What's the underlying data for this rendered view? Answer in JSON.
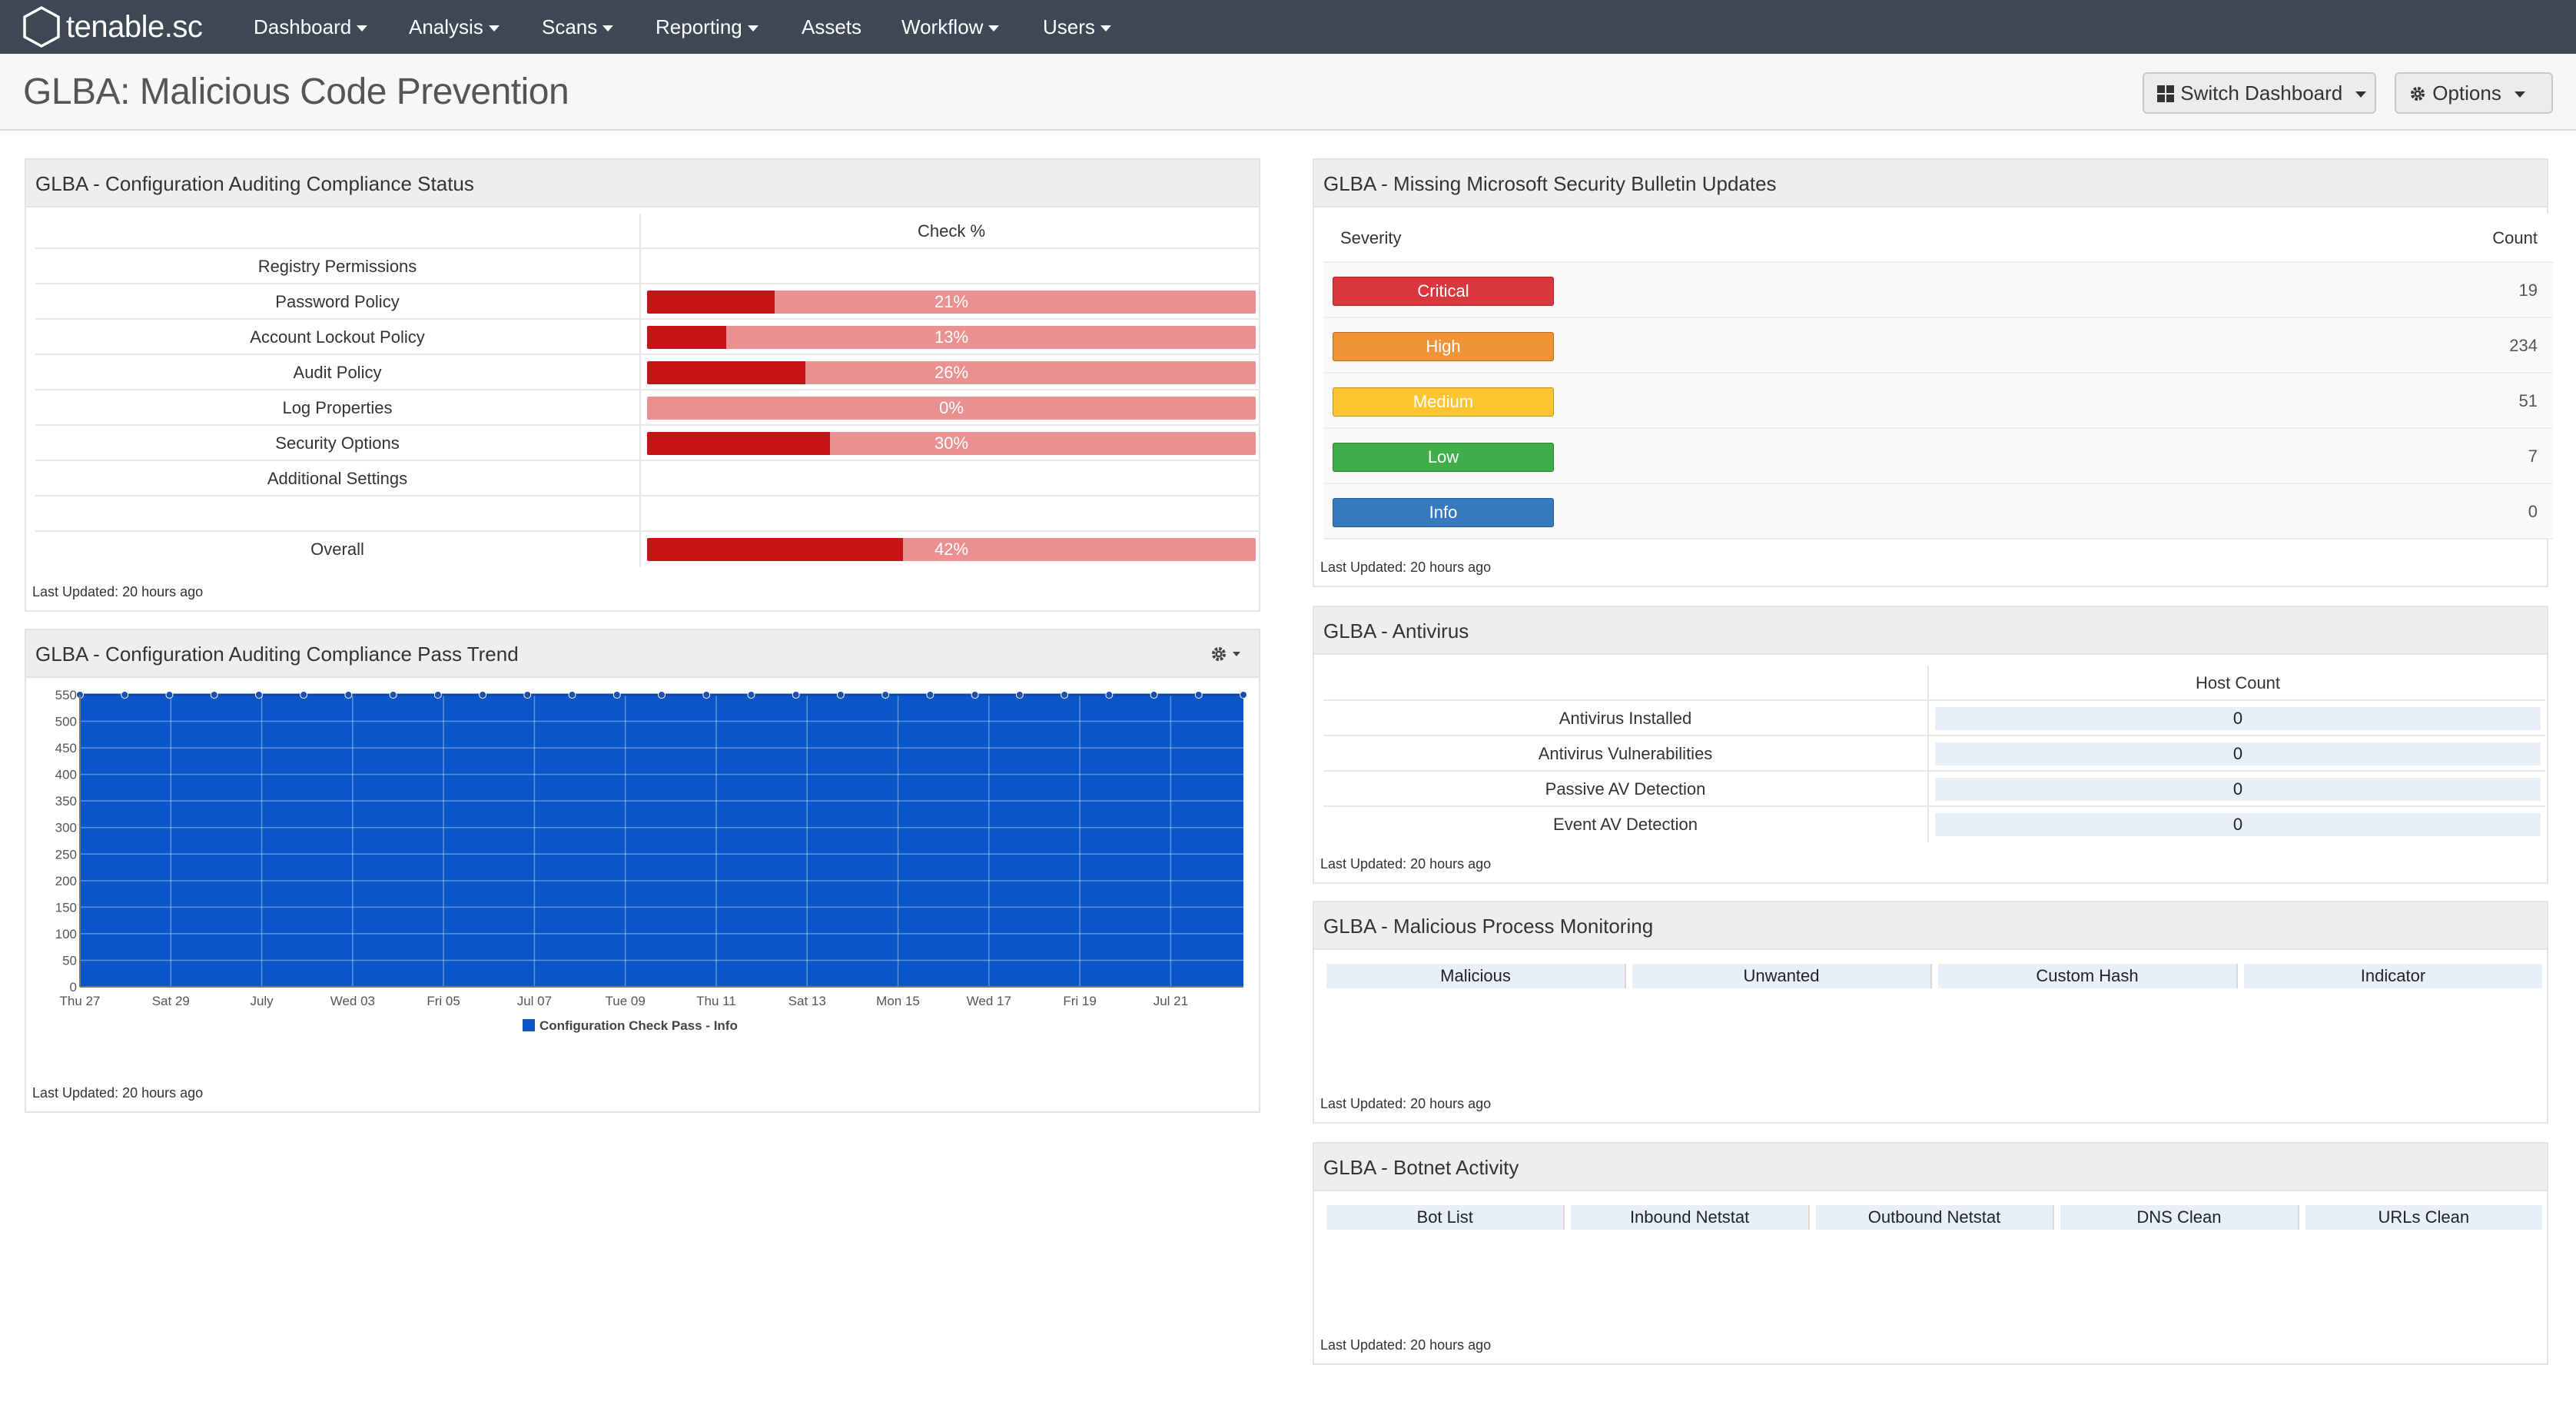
{
  "nav": {
    "logo": "tenable.sc",
    "items": [
      {
        "label": "Dashboard",
        "caret": true
      },
      {
        "label": "Analysis",
        "caret": true
      },
      {
        "label": "Scans",
        "caret": true
      },
      {
        "label": "Reporting",
        "caret": true
      },
      {
        "label": "Assets",
        "caret": false
      },
      {
        "label": "Workflow",
        "caret": true
      },
      {
        "label": "Users",
        "caret": true
      }
    ]
  },
  "header": {
    "title": "GLBA: Malicious Code Prevention",
    "switch_label": "Switch Dashboard",
    "options_label": "Options"
  },
  "compliance": {
    "title": "GLBA - Configuration Auditing Compliance Status",
    "column": "Check %",
    "rows": [
      {
        "label": "Registry Permissions",
        "pct": null
      },
      {
        "label": "Password Policy",
        "pct": 21
      },
      {
        "label": "Account Lockout Policy",
        "pct": 13
      },
      {
        "label": "Audit Policy",
        "pct": 26
      },
      {
        "label": "Log Properties",
        "pct": 0
      },
      {
        "label": "Security Options",
        "pct": 30
      },
      {
        "label": "Additional Settings",
        "pct": null
      },
      {
        "label": "",
        "pct": null
      },
      {
        "label": "Overall",
        "pct": 42
      }
    ],
    "updated": "Last Updated: 20 hours ago"
  },
  "trend": {
    "title": "GLBA - Configuration Auditing Compliance Pass Trend",
    "updated": "Last Updated: 20 hours ago"
  },
  "chart_data": {
    "type": "area",
    "title": "",
    "xlabel": "",
    "ylabel": "",
    "ylim": [
      0,
      550
    ],
    "y_ticks": [
      0,
      50,
      100,
      150,
      200,
      250,
      300,
      350,
      400,
      450,
      500,
      550
    ],
    "x_tick_labels": [
      "Thu 27",
      "Sat 29",
      "July",
      "Wed 03",
      "Fri 05",
      "Jul 07",
      "Tue 09",
      "Thu 11",
      "Sat 13",
      "Mon 15",
      "Wed 17",
      "Fri 19",
      "Jul 21"
    ],
    "grid": true,
    "legend_position": "bottom",
    "series": [
      {
        "name": "Configuration Check Pass - Info",
        "color": "#0a56c8",
        "values": [
          550,
          550,
          550,
          550,
          550,
          550,
          550,
          550,
          550,
          550,
          550,
          550,
          550,
          550,
          550,
          550,
          550,
          550,
          550,
          550,
          550,
          550,
          550,
          550,
          550,
          550,
          550
        ]
      }
    ]
  },
  "security": {
    "title": "GLBA - Missing Microsoft Security Bulletin Updates",
    "col_severity": "Severity",
    "col_count": "Count",
    "rows": [
      {
        "label": "Critical",
        "count": "19",
        "color": "#d9363e"
      },
      {
        "label": "High",
        "count": "234",
        "color": "#ee9336"
      },
      {
        "label": "Medium",
        "count": "51",
        "color": "#fdc431"
      },
      {
        "label": "Low",
        "count": "7",
        "color": "#3fae49"
      },
      {
        "label": "Info",
        "count": "0",
        "color": "#357abd"
      }
    ],
    "updated": "Last Updated: 20 hours ago"
  },
  "antivirus": {
    "title": "GLBA - Antivirus",
    "column": "Host Count",
    "rows": [
      {
        "label": "Antivirus Installed",
        "value": "0"
      },
      {
        "label": "Antivirus Vulnerabilities",
        "value": "0"
      },
      {
        "label": "Passive AV Detection",
        "value": "0"
      },
      {
        "label": "Event AV Detection",
        "value": "0"
      }
    ],
    "updated": "Last Updated: 20 hours ago"
  },
  "process": {
    "title": "GLBA - Malicious Process Monitoring",
    "columns": [
      "Malicious",
      "Unwanted",
      "Custom Hash",
      "Indicator"
    ],
    "updated": "Last Updated: 20 hours ago"
  },
  "botnet": {
    "title": "GLBA - Botnet Activity",
    "columns": [
      "Bot List",
      "Inbound Netstat",
      "Outbound Netstat",
      "DNS Clean",
      "URLs Clean"
    ],
    "updated": "Last Updated: 20 hours ago"
  }
}
